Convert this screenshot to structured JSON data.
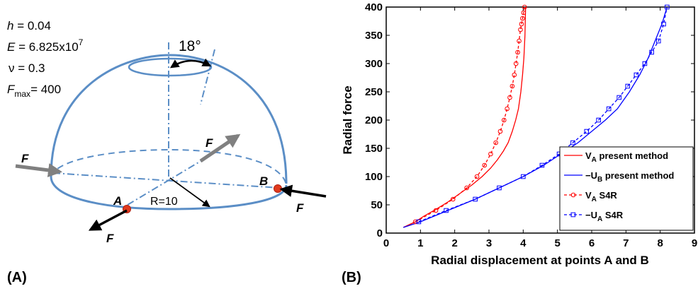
{
  "panel_a": {
    "label": "(A)",
    "params": {
      "h": {
        "sym": "h",
        "eq": " = 0.04"
      },
      "E": {
        "sym": "E",
        "eq": " = 6.825x10",
        "exp": "7"
      },
      "nu": {
        "sym": "ν",
        "eq": " = 0.3"
      },
      "F": {
        "sym": "F",
        "sub": "max",
        "eq": "= 400"
      }
    },
    "angle_label": "18°",
    "radius_label": "R=10",
    "point_a": "A",
    "point_b": "B",
    "force": "F",
    "colors": {
      "shell": "#5b8ec6",
      "point": "#e03a1e",
      "gray_arrow": "#808080"
    }
  },
  "panel_b": {
    "label": "(B)",
    "chart_data": {
      "type": "line",
      "xlabel": "Radial displacement at points A and B",
      "ylabel": "Radial force",
      "xlim": [
        0,
        9
      ],
      "ylim": [
        0,
        400
      ],
      "xticks": [
        "0",
        "1",
        "2",
        "3",
        "4",
        "5",
        "6",
        "7",
        "8",
        "9"
      ],
      "yticks": [
        "0",
        "50",
        "100",
        "150",
        "200",
        "250",
        "300",
        "350",
        "400"
      ],
      "grid": false,
      "legend_position": "bottom-right",
      "series": [
        {
          "name": "V",
          "sub": "A",
          "suffix": "  present method",
          "color": "#ff0000",
          "style": "solid",
          "marker": "none",
          "x": [
            0.5,
            0.85,
            1.1,
            1.45,
            1.8,
            2.15,
            2.5,
            2.8,
            3.05,
            3.25,
            3.42,
            3.56,
            3.68,
            3.78,
            3.86,
            3.93,
            3.98,
            4.02,
            4.05,
            4.07
          ],
          "y": [
            10,
            20,
            30,
            42,
            55,
            70,
            85,
            100,
            115,
            130,
            145,
            160,
            180,
            200,
            220,
            250,
            280,
            310,
            350,
            400
          ]
        },
        {
          "name": "−U",
          "sub": "B",
          "suffix": " present method",
          "color": "#0000ff",
          "style": "solid",
          "marker": "none",
          "x": [
            0.5,
            1.0,
            1.8,
            2.6,
            3.3,
            4.0,
            4.6,
            5.1,
            5.6,
            6.0,
            6.4,
            6.75,
            7.1,
            7.4,
            7.65,
            7.85,
            8.05,
            8.2
          ],
          "y": [
            10,
            20,
            40,
            60,
            80,
            100,
            120,
            140,
            160,
            180,
            200,
            220,
            250,
            280,
            310,
            340,
            370,
            400
          ]
        },
        {
          "name": "V",
          "sub": "A",
          "suffix": "  S4R",
          "color": "#ff0000",
          "style": "dashed",
          "marker": "circle",
          "x": [
            0.85,
            1.45,
            1.95,
            2.35,
            2.65,
            2.87,
            3.05,
            3.2,
            3.33,
            3.44,
            3.53,
            3.61,
            3.68,
            3.74,
            3.79,
            3.84,
            3.88,
            3.92,
            3.95,
            3.98,
            4.01,
            4.04
          ],
          "y": [
            20,
            40,
            60,
            80,
            100,
            120,
            140,
            160,
            180,
            200,
            220,
            240,
            260,
            280,
            300,
            320,
            340,
            360,
            370,
            380,
            390,
            400
          ]
        },
        {
          "name": "−U",
          "sub": "A",
          "suffix": " S4R",
          "color": "#0000ff",
          "style": "dashed",
          "marker": "square",
          "x": [
            0.95,
            1.75,
            2.6,
            3.3,
            4.0,
            4.55,
            5.05,
            5.45,
            5.85,
            6.2,
            6.5,
            6.8,
            7.05,
            7.3,
            7.55,
            7.75,
            7.95,
            8.1,
            8.2
          ],
          "y": [
            20,
            40,
            60,
            80,
            100,
            120,
            140,
            160,
            180,
            200,
            220,
            240,
            260,
            280,
            300,
            320,
            340,
            370,
            400
          ]
        }
      ]
    }
  }
}
